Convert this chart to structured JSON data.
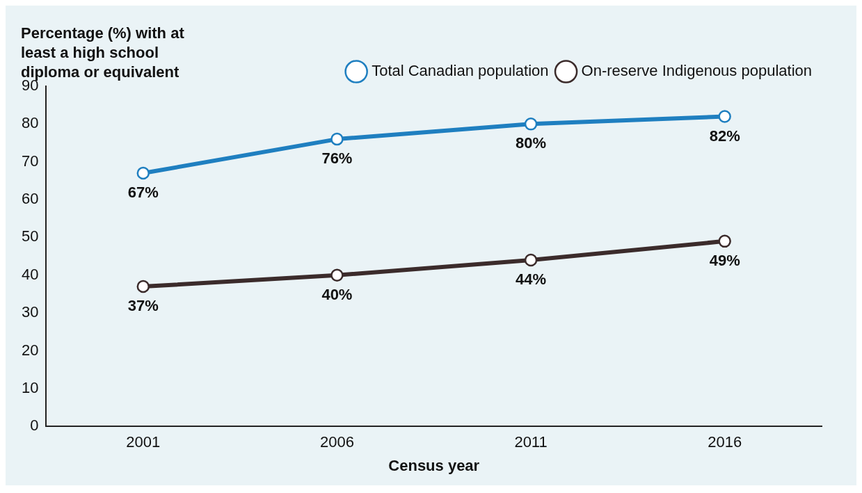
{
  "chart_data": {
    "type": "line",
    "ylabel": "Percentage (%) with at least a high school diploma or equivalent",
    "xlabel": "Census year",
    "categories": [
      "2001",
      "2006",
      "2011",
      "2016"
    ],
    "series": [
      {
        "name": "Total Canadian population",
        "color": "#1f7fc0",
        "values": [
          67,
          76,
          80,
          82
        ],
        "value_labels": [
          "67%",
          "76%",
          "80%",
          "82%"
        ]
      },
      {
        "name": "On-reserve Indigenous population",
        "color": "#3b2b2b",
        "values": [
          37,
          40,
          44,
          49
        ],
        "value_labels": [
          "37%",
          "40%",
          "44%",
          "49%"
        ]
      }
    ],
    "ylim": [
      0,
      90
    ],
    "yticks": [
      0,
      10,
      20,
      30,
      40,
      50,
      60,
      70,
      80,
      90
    ],
    "grid": false,
    "legend": "top right",
    "marker": "circle",
    "line_style": "solid"
  }
}
